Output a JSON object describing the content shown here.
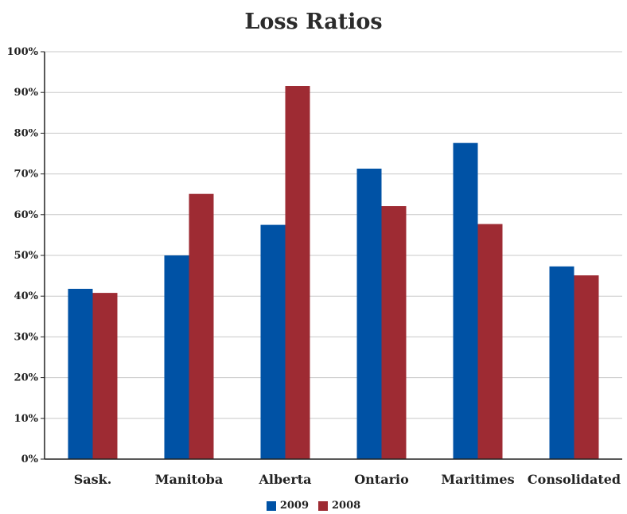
{
  "chart_data": {
    "type": "bar",
    "title": "Loss Ratios",
    "categories": [
      "Sask.",
      "Manitoba",
      "Alberta",
      "Ontario",
      "Maritimes",
      "Consolidated"
    ],
    "series": [
      {
        "name": "2009",
        "color": "#0052a5",
        "values": [
          41.8,
          50.0,
          57.5,
          71.3,
          77.6,
          47.3
        ]
      },
      {
        "name": "2008",
        "color": "#9e2b33",
        "values": [
          40.8,
          65.1,
          91.6,
          62.1,
          57.7,
          45.1
        ]
      }
    ],
    "ylim": [
      0,
      100
    ],
    "yticks": [
      "0%",
      "10%",
      "20%",
      "30%",
      "40%",
      "50%",
      "60%",
      "70%",
      "80%",
      "90%",
      "100%"
    ],
    "grid": true,
    "legend_position": "bottom"
  }
}
